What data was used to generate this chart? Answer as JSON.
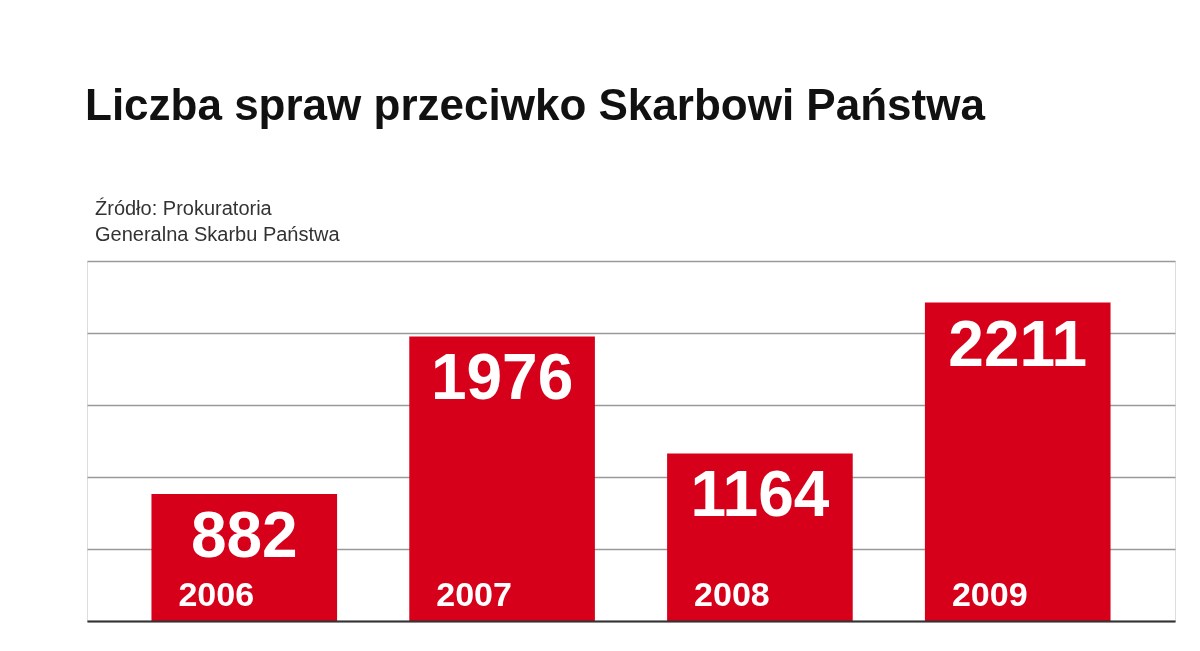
{
  "chart_data": {
    "type": "bar",
    "title": "Liczba spraw przeciwko Skarbowi Państwa",
    "annotations": [
      "Źródło: Prokuratoria\nGeneralna Skarbu Państwa"
    ],
    "categories": [
      "2006",
      "2007",
      "2008",
      "2009"
    ],
    "values": [
      882,
      1976,
      1164,
      2211
    ],
    "color": "#d7001a",
    "ylim": [
      0,
      2500
    ],
    "yticks": [
      {
        "value": 0,
        "label": null
      },
      {
        "value": 500,
        "label": null
      },
      {
        "value": 1000,
        "label": null
      },
      {
        "value": 1500,
        "label": null
      },
      {
        "value": 2000,
        "label": null
      },
      {
        "value": 2500,
        "label": null
      }
    ],
    "grid": "y",
    "data_labels": true
  }
}
